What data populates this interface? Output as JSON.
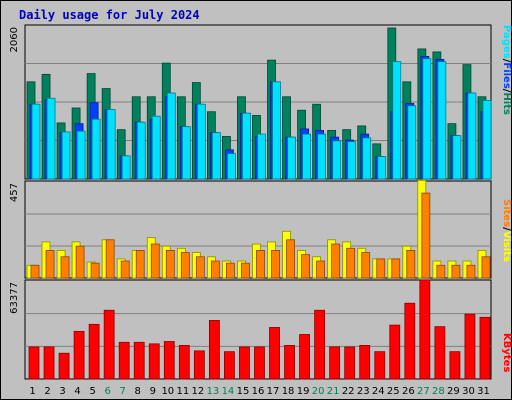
{
  "title": "Daily usage for July 2024",
  "colors": {
    "hits": "#00805c",
    "files": "#0040ff",
    "pages": "#00e0ff",
    "visits": "#ffff00",
    "sites": "#ff8000",
    "kbytes": "#ff0000",
    "weekend_label": "#00805c",
    "weekday_label": "#000000",
    "panel_bg": "#c0c0c0",
    "title": "#0000c0"
  },
  "chart_data": [
    {
      "type": "bar",
      "name": "hits-files-pages",
      "ymax_label": "2060",
      "ylim": [
        0,
        2060
      ],
      "legend_parts": [
        {
          "text": "Pages",
          "color": "#00e0ff"
        },
        {
          "text": "/",
          "color": "#000000"
        },
        {
          "text": "Files",
          "color": "#0040ff"
        },
        {
          "text": "/",
          "color": "#000000"
        },
        {
          "text": "Hits",
          "color": "#00805c"
        }
      ],
      "categories": [
        "1",
        "2",
        "3",
        "4",
        "5",
        "6",
        "7",
        "8",
        "9",
        "10",
        "11",
        "12",
        "13",
        "14",
        "15",
        "16",
        "17",
        "18",
        "19",
        "20",
        "21",
        "22",
        "23",
        "24",
        "25",
        "26",
        "27",
        "28",
        "29",
        "30",
        "31"
      ],
      "series": [
        {
          "name": "Hits",
          "values": [
            1300,
            1400,
            750,
            950,
            1410,
            1210,
            660,
            1100,
            1100,
            1550,
            1100,
            1290,
            900,
            570,
            1100,
            850,
            1590,
            1100,
            920,
            1000,
            650,
            660,
            710,
            470,
            2020,
            1300,
            1740,
            1700,
            740,
            1530,
            1100
          ]
        },
        {
          "name": "Files",
          "values": [
            1000,
            1060,
            620,
            740,
            1020,
            930,
            310,
            760,
            800,
            1100,
            700,
            1000,
            620,
            390,
            880,
            570,
            1300,
            560,
            670,
            650,
            560,
            520,
            600,
            300,
            900,
            1010,
            1640,
            1600,
            580,
            1150,
            900
          ]
        },
        {
          "name": "Pages",
          "values": [
            1000,
            1080,
            630,
            640,
            800,
            930,
            310,
            760,
            840,
            1150,
            700,
            1000,
            620,
            340,
            880,
            600,
            1300,
            560,
            600,
            600,
            510,
            500,
            550,
            300,
            1570,
            980,
            1610,
            1570,
            580,
            1150,
            1050
          ]
        }
      ]
    },
    {
      "type": "bar",
      "name": "visits-sites",
      "ymax_label": "457",
      "ylim": [
        0,
        457
      ],
      "legend_parts": [
        {
          "text": "Sites",
          "color": "#ff8000"
        },
        {
          "text": "/",
          "color": "#000000"
        },
        {
          "text": "Visits",
          "color": "#ffff00"
        }
      ],
      "categories": [
        "1",
        "2",
        "3",
        "4",
        "5",
        "6",
        "7",
        "8",
        "9",
        "10",
        "11",
        "12",
        "13",
        "14",
        "15",
        "16",
        "17",
        "18",
        "19",
        "20",
        "21",
        "22",
        "23",
        "24",
        "25",
        "26",
        "27",
        "28",
        "29",
        "30",
        "31"
      ],
      "series": [
        {
          "name": "Visits",
          "values": [
            60,
            170,
            130,
            170,
            75,
            180,
            90,
            130,
            190,
            150,
            140,
            120,
            100,
            80,
            80,
            160,
            170,
            220,
            130,
            100,
            180,
            170,
            140,
            90,
            90,
            150,
            460,
            80,
            80,
            80,
            130
          ]
        },
        {
          "name": "Sites",
          "values": [
            60,
            130,
            100,
            150,
            70,
            180,
            80,
            130,
            160,
            130,
            120,
            100,
            80,
            70,
            70,
            130,
            130,
            180,
            110,
            80,
            160,
            140,
            120,
            90,
            90,
            130,
            400,
            60,
            60,
            60,
            100
          ]
        }
      ]
    },
    {
      "type": "bar",
      "name": "kbytes",
      "ymax_label": "63377",
      "ylim": [
        0,
        63377
      ],
      "legend_parts": [
        {
          "text": "KBytes",
          "color": "#ff0000"
        }
      ],
      "categories": [
        "1",
        "2",
        "3",
        "4",
        "5",
        "6",
        "7",
        "8",
        "9",
        "10",
        "11",
        "12",
        "13",
        "14",
        "15",
        "16",
        "17",
        "18",
        "19",
        "20",
        "21",
        "22",
        "23",
        "24",
        "25",
        "26",
        "27",
        "28",
        "29",
        "30",
        "31"
      ],
      "series": [
        {
          "name": "KBytes",
          "values": [
            20500,
            20500,
            16500,
            30500,
            35000,
            44000,
            23500,
            23500,
            22500,
            24000,
            21500,
            18000,
            37500,
            17500,
            20500,
            20500,
            33000,
            21500,
            28500,
            44000,
            20500,
            20500,
            21500,
            17500,
            34500,
            48500,
            63377,
            33500,
            17500,
            41500,
            39500
          ]
        }
      ]
    }
  ],
  "weekend_days": [
    "6",
    "7",
    "13",
    "14",
    "20",
    "21",
    "27",
    "28"
  ]
}
